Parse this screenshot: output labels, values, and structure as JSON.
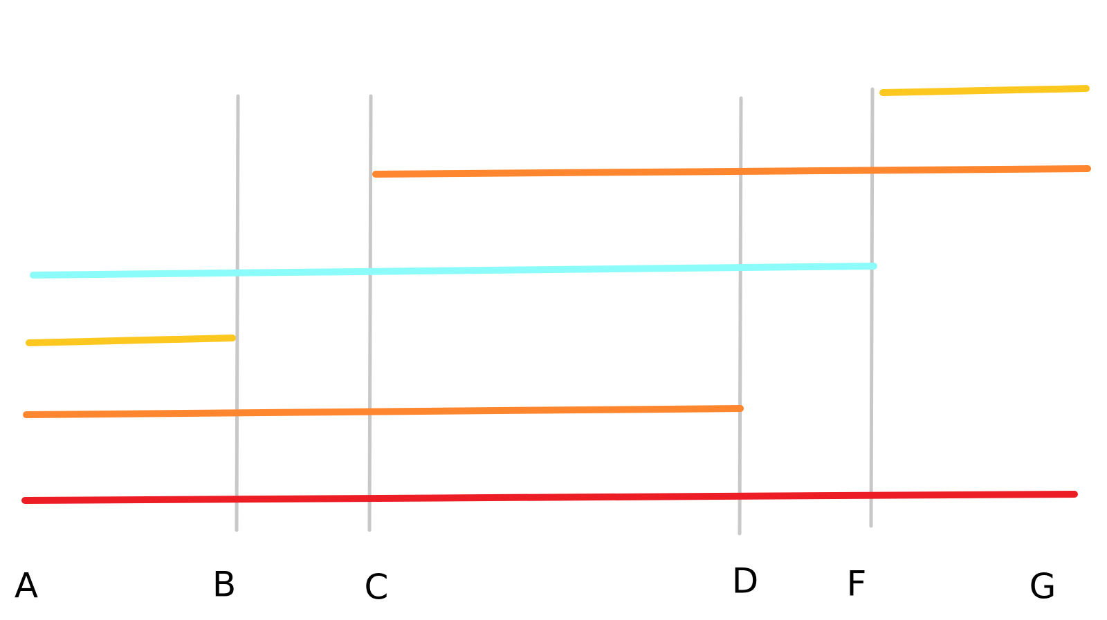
{
  "labels": [
    "A",
    "B",
    "C",
    "D",
    "F",
    "G"
  ]
}
